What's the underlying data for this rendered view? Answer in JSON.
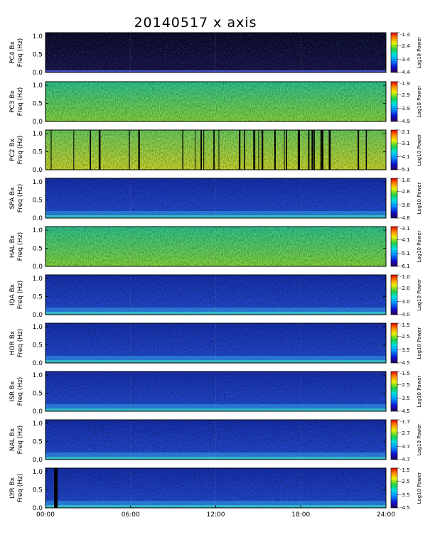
{
  "title": "20140517  x axis",
  "chart_data": {
    "type": "heatmap",
    "title": "20140517  x axis",
    "x_tick_labels": [
      "00:00",
      "06:00",
      "12:00",
      "18:00",
      "24:00"
    ],
    "xlim": [
      "00:00",
      "24:00"
    ],
    "y_tick_labels": [
      "0.0",
      "0.5",
      "1.0"
    ],
    "ylim": [
      0,
      1.1
    ],
    "panels": [
      {
        "station": "PC4",
        "ylabel_top": "PC4 Bx",
        "ylabel_bottom": "Freq (Hz)",
        "colorbar_label": "Log10 Power",
        "colorbar_ticks": [
          "-1.4",
          "-2.4",
          "-3.4",
          "-4.4"
        ],
        "colorbar_range": [
          -4.4,
          -1.4
        ],
        "background": "dark"
      },
      {
        "station": "PC3",
        "ylabel_top": "PC3 Bx",
        "ylabel_bottom": "Freq (Hz)",
        "colorbar_label": "Log10 Power",
        "colorbar_ticks": [
          "-1.9",
          "-2.9",
          "-3.9",
          "-4.9"
        ],
        "colorbar_range": [
          -4.9,
          -1.9
        ],
        "background": "green"
      },
      {
        "station": "PC2",
        "ylabel_top": "PC2 Bx",
        "ylabel_bottom": "Freq (Hz)",
        "colorbar_label": "Log10 Power",
        "colorbar_ticks": [
          "-2.1",
          "-3.1",
          "-4.1",
          "-5.1"
        ],
        "colorbar_range": [
          -5.1,
          -2.1
        ],
        "background": "green-yellow"
      },
      {
        "station": "SPA",
        "ylabel_top": "SPA Bx",
        "ylabel_bottom": "Freq (Hz)",
        "colorbar_label": "Log10 Power",
        "colorbar_ticks": [
          "-1.8",
          "-2.8",
          "-3.8",
          "-4.8"
        ],
        "colorbar_range": [
          -4.8,
          -1.8
        ],
        "background": "blue"
      },
      {
        "station": "HAL",
        "ylabel_top": "HAL Bx",
        "ylabel_bottom": "Freq (Hz)",
        "colorbar_label": "Log10 Power",
        "colorbar_ticks": [
          "-3.1",
          "-4.1",
          "-5.1",
          "-6.1"
        ],
        "colorbar_range": [
          -6.1,
          -3.1
        ],
        "background": "green"
      },
      {
        "station": "IQA",
        "ylabel_top": "IQA Bx",
        "ylabel_bottom": "Freq (Hz)",
        "colorbar_label": "Log10 Power",
        "colorbar_ticks": [
          "-1.0",
          "-2.0",
          "-3.0",
          "-4.0"
        ],
        "colorbar_range": [
          -4.0,
          -1.0
        ],
        "background": "blue"
      },
      {
        "station": "HOR",
        "ylabel_top": "HOR Bx",
        "ylabel_bottom": "Freq (Hz)",
        "colorbar_label": "Log10 Power",
        "colorbar_ticks": [
          "-1.5",
          "-2.5",
          "-3.5",
          "-4.5"
        ],
        "colorbar_range": [
          -4.5,
          -1.5
        ],
        "background": "blue"
      },
      {
        "station": "ISR",
        "ylabel_top": "ISR Bx",
        "ylabel_bottom": "Freq (Hz)",
        "colorbar_label": "Log10 Power",
        "colorbar_ticks": [
          "-1.5",
          "-2.5",
          "-3.5",
          "-4.5"
        ],
        "colorbar_range": [
          -4.5,
          -1.5
        ],
        "background": "blue"
      },
      {
        "station": "NAL",
        "ylabel_top": "NAL Bx",
        "ylabel_bottom": "Freq (Hz)",
        "colorbar_label": "Log10 Power",
        "colorbar_ticks": [
          "-1.7",
          "-2.7",
          "-3.7",
          "-4.7"
        ],
        "colorbar_range": [
          -4.7,
          -1.7
        ],
        "background": "blue"
      },
      {
        "station": "LYR",
        "ylabel_top": "LYR Bx",
        "ylabel_bottom": "Freq (Hz)",
        "colorbar_label": "Log10 Power",
        "colorbar_ticks": [
          "-1.5",
          "-2.5",
          "-3.5",
          "-4.5"
        ],
        "colorbar_range": [
          -4.5,
          -1.5
        ],
        "background": "blue"
      }
    ]
  }
}
